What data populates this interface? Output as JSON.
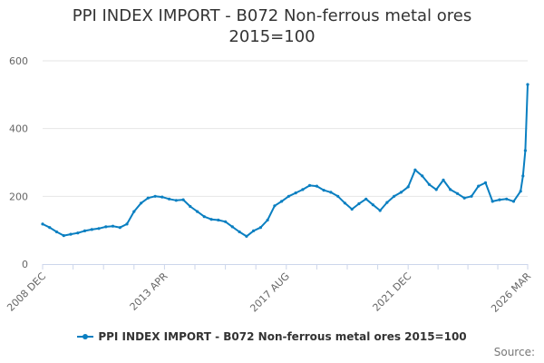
{
  "chart_data": {
    "type": "line",
    "title": "PPI INDEX IMPORT - B072 Non-ferrous metal ores",
    "subtitle": "2015=100",
    "xlabel": "",
    "ylabel": "",
    "ylim": [
      0,
      600
    ],
    "yticks": [
      0,
      200,
      400,
      600
    ],
    "x_tick_labels": [
      "2008 DEC",
      "2013 APR",
      "2017 AUG",
      "2021 DEC",
      "2026 MAR"
    ],
    "grid": "horizontal",
    "legend_position": "bottom",
    "color": "#0a7fc1",
    "series": [
      {
        "name": "PPI INDEX IMPORT - B072 Non-ferrous metal ores 2015=100",
        "x": [
          "2008-12",
          "2009-03",
          "2009-06",
          "2009-09",
          "2009-12",
          "2010-03",
          "2010-06",
          "2010-09",
          "2010-12",
          "2011-03",
          "2011-06",
          "2011-09",
          "2011-12",
          "2012-03",
          "2012-06",
          "2012-09",
          "2012-12",
          "2013-03",
          "2013-06",
          "2013-09",
          "2013-12",
          "2014-03",
          "2014-06",
          "2014-09",
          "2014-12",
          "2015-03",
          "2015-06",
          "2015-09",
          "2015-12",
          "2016-03",
          "2016-06",
          "2016-09",
          "2016-12",
          "2017-03",
          "2017-06",
          "2017-09",
          "2017-12",
          "2018-03",
          "2018-06",
          "2018-09",
          "2018-12",
          "2019-03",
          "2019-06",
          "2019-09",
          "2019-12",
          "2020-03",
          "2020-06",
          "2020-09",
          "2020-12",
          "2021-03",
          "2021-06",
          "2021-09",
          "2021-12",
          "2022-03",
          "2022-06",
          "2022-09",
          "2022-12",
          "2023-03",
          "2023-06",
          "2023-09",
          "2023-12",
          "2024-03",
          "2024-06",
          "2024-09",
          "2024-12",
          "2025-03",
          "2025-06",
          "2025-09",
          "2025-12",
          "2026-01",
          "2026-02",
          "2026-03"
        ],
        "values": [
          118,
          108,
          95,
          84,
          88,
          92,
          98,
          102,
          105,
          110,
          112,
          108,
          118,
          155,
          180,
          195,
          200,
          198,
          192,
          188,
          190,
          170,
          155,
          140,
          132,
          130,
          125,
          110,
          95,
          82,
          98,
          108,
          130,
          172,
          185,
          200,
          210,
          220,
          232,
          230,
          218,
          212,
          200,
          180,
          162,
          178,
          192,
          175,
          158,
          182,
          200,
          212,
          228,
          278,
          260,
          235,
          220,
          248,
          220,
          208,
          195,
          200,
          230,
          240,
          185,
          190,
          192,
          185,
          215,
          260,
          335,
          530
        ]
      }
    ]
  },
  "credits": "Source:"
}
